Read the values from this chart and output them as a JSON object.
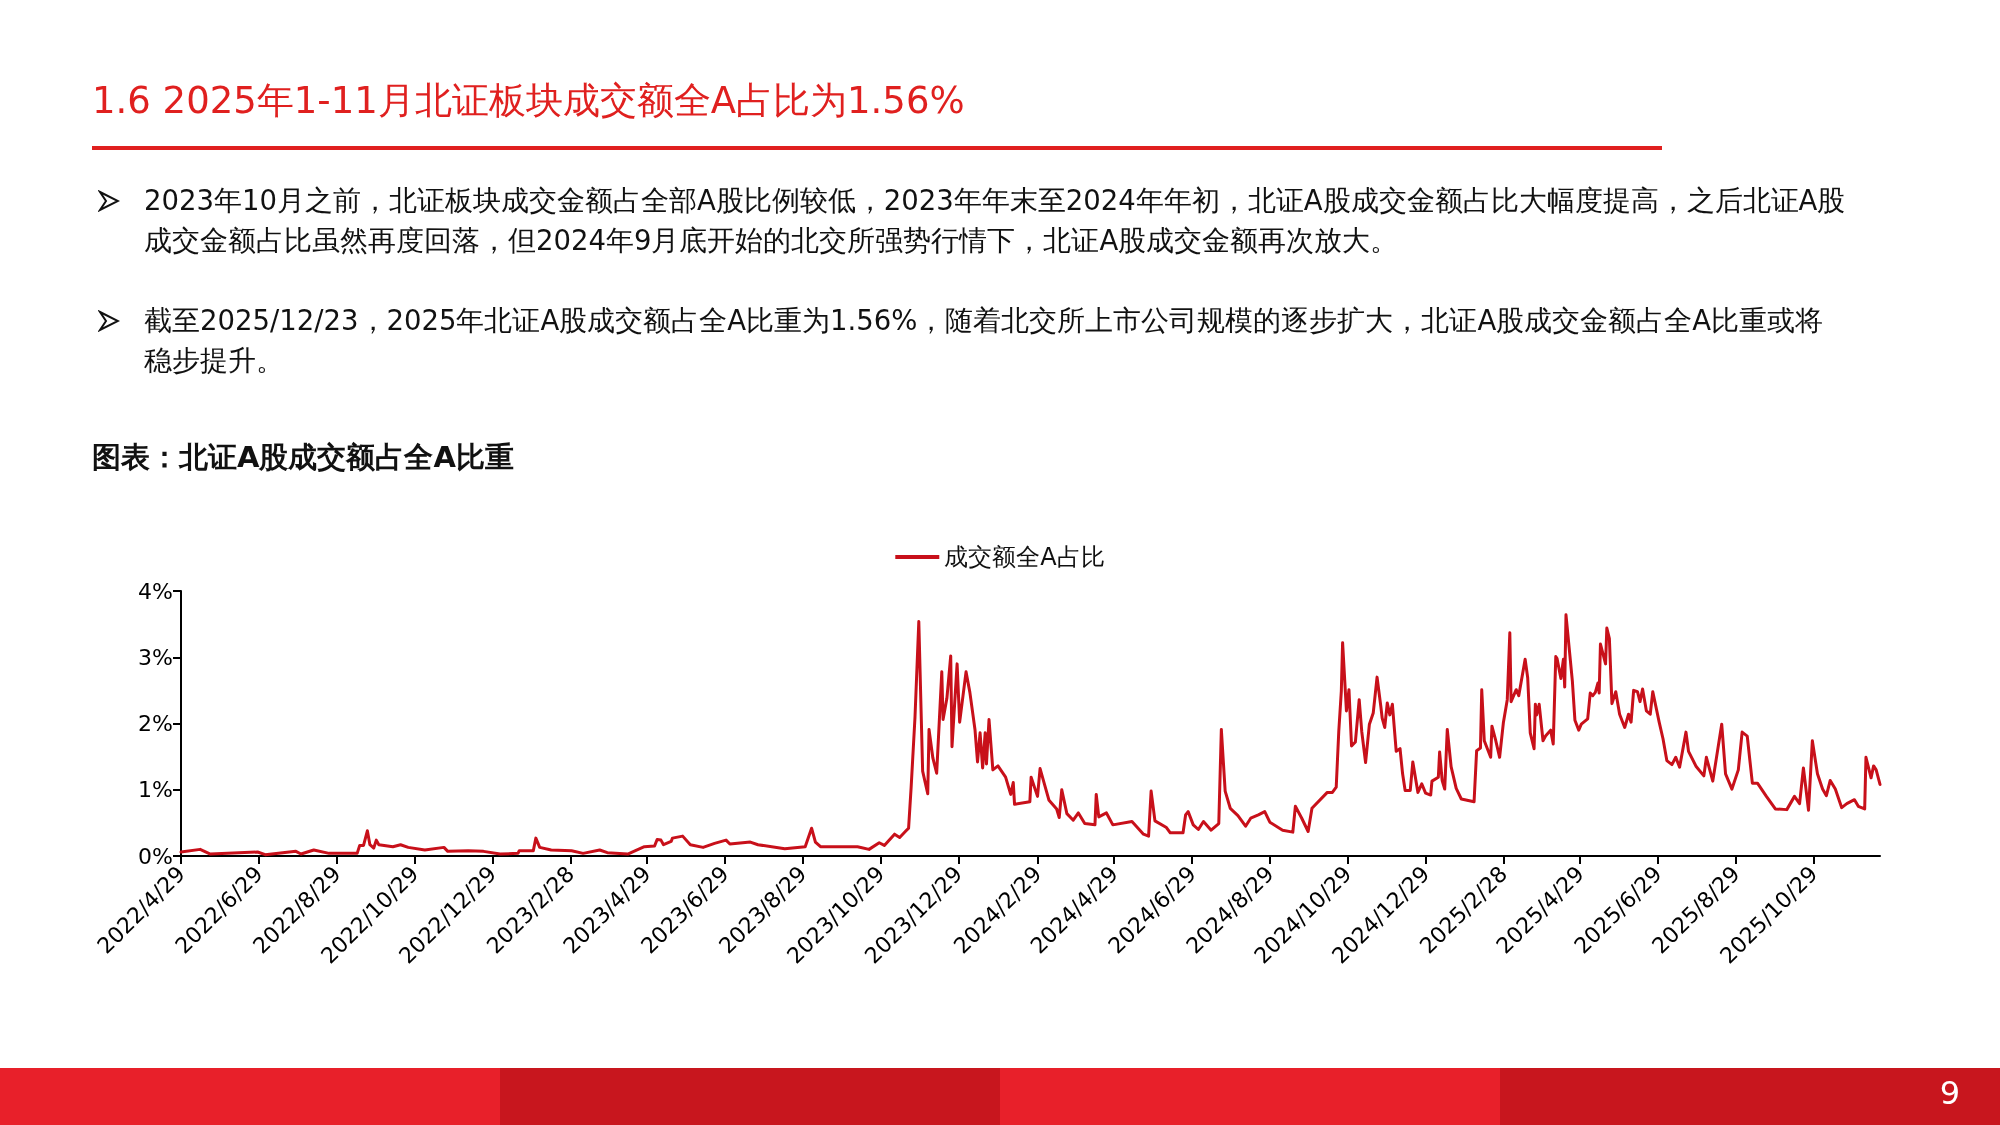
{
  "chart_data": {
    "type": "line",
    "title": "1.6 2025年1-11月北证板块成交额全A占比为1.56%",
    "subtitle": "图表：北证A股成交额占全A比重",
    "annotations": [
      "2023年10月之前，北证板块成交金额占全部A股比例较低，2023年年末至2024年年初，北证A股成交金额占比大幅度提高，之后北证A股成交金额占比虽然再度回落，但2024年9月底开始的北交所强势行情下，北证A股成交金额再次放大。",
      "截至2025/12/23，2025年北证A股成交额占全A比重为1.56%，随着北交所上市公司规模的逐步扩大，北证A股成交金额占全A比重或将稳步提升。",
      "9"
    ],
    "legend": "top",
    "line_style": "solid",
    "marker": "none",
    "ylim": [
      0,
      4
    ],
    "yticks": [
      {
        "value": 0,
        "label": "0%"
      },
      {
        "value": 1,
        "label": "1%"
      },
      {
        "value": 2,
        "label": "2%"
      },
      {
        "value": 3,
        "label": "3%"
      },
      {
        "value": 4,
        "label": "4%"
      }
    ],
    "xlim": [
      "2022-04-29",
      "2025-12-20"
    ],
    "xticks": [
      {
        "value": "2022-04-29",
        "label": "2022/4/29"
      },
      {
        "value": "2022-06-29",
        "label": "2022/6/29"
      },
      {
        "value": "2022-08-29",
        "label": "2022/8/29"
      },
      {
        "value": "2022-10-29",
        "label": "2022/10/29"
      },
      {
        "value": "2022-12-29",
        "label": "2022/12/29"
      },
      {
        "value": "2023-02-28",
        "label": "2023/2/28"
      },
      {
        "value": "2023-04-29",
        "label": "2023/4/29"
      },
      {
        "value": "2023-06-29",
        "label": "2023/6/29"
      },
      {
        "value": "2023-08-29",
        "label": "2023/8/29"
      },
      {
        "value": "2023-10-29",
        "label": "2023/10/29"
      },
      {
        "value": "2023-12-29",
        "label": "2023/12/29"
      },
      {
        "value": "2024-02-29",
        "label": "2024/2/29"
      },
      {
        "value": "2024-04-29",
        "label": "2024/4/29"
      },
      {
        "value": "2024-06-29",
        "label": "2024/6/29"
      },
      {
        "value": "2024-08-29",
        "label": "2024/8/29"
      },
      {
        "value": "2024-10-29",
        "label": "2024/10/29"
      },
      {
        "value": "2024-12-29",
        "label": "2024/12/29"
      },
      {
        "value": "2025-02-28",
        "label": "2025/2/28"
      },
      {
        "value": "2025-04-29",
        "label": "2025/4/29"
      },
      {
        "value": "2025-06-29",
        "label": "2025/6/29"
      },
      {
        "value": "2025-08-29",
        "label": "2025/8/29"
      },
      {
        "value": "2025-10-29",
        "label": "2025/10/29"
      }
    ],
    "series": [
      {
        "name": "成交额全A占比",
        "color": "#c8101a",
        "x": [
          "2022-04-29",
          "2022-05-14",
          "2022-05-22",
          "2022-06-28",
          "2022-07-04",
          "2022-07-28",
          "2022-08-01",
          "2022-08-11",
          "2022-08-23",
          "2022-09-14",
          "2022-09-16",
          "2022-09-19",
          "2022-09-22",
          "2022-09-24",
          "2022-09-27",
          "2022-09-29",
          "2022-10-01",
          "2022-10-12",
          "2022-10-18",
          "2022-10-24",
          "2022-11-06",
          "2022-11-21",
          "2022-11-24",
          "2022-12-10",
          "2022-12-22",
          "2023-01-04",
          "2023-01-18",
          "2023-01-19",
          "2023-01-30",
          "2023-02-01",
          "2023-02-04",
          "2023-02-13",
          "2023-03-01",
          "2023-03-10",
          "2023-03-23",
          "2023-03-29",
          "2023-04-14",
          "2023-04-20",
          "2023-04-27",
          "2023-05-05",
          "2023-05-07",
          "2023-05-10",
          "2023-05-12",
          "2023-05-18",
          "2023-05-19",
          "2023-05-27",
          "2023-06-02",
          "2023-06-12",
          "2023-06-21",
          "2023-06-30",
          "2023-07-03",
          "2023-07-19",
          "2023-07-25",
          "2023-08-15",
          "2023-08-31",
          "2023-09-05",
          "2023-09-08",
          "2023-09-12",
          "2023-10-11",
          "2023-10-20",
          "2023-10-28",
          "2023-11-01",
          "2023-11-09",
          "2023-11-13",
          "2023-11-18",
          "2023-11-20",
          "2023-11-22",
          "2023-11-25",
          "2023-11-28",
          "2023-12-01",
          "2023-12-05",
          "2023-12-06",
          "2023-12-09",
          "2023-12-12",
          "2023-12-16",
          "2023-12-17",
          "2023-12-20",
          "2023-12-23",
          "2023-12-24",
          "2023-12-28",
          "2023-12-30",
          "2024-01-04",
          "2024-01-07",
          "2024-01-11",
          "2024-01-13",
          "2024-01-15",
          "2024-01-17",
          "2024-01-19",
          "2024-01-20",
          "2024-01-22",
          "2024-01-25",
          "2024-01-29",
          "2024-02-04",
          "2024-02-08",
          "2024-02-10",
          "2024-02-11",
          "2024-02-23",
          "2024-02-24",
          "2024-02-29",
          "2024-03-02",
          "2024-03-09",
          "2024-03-15",
          "2024-03-17",
          "2024-03-19",
          "2024-03-23",
          "2024-03-28",
          "2024-04-01",
          "2024-04-06",
          "2024-04-14",
          "2024-04-15",
          "2024-04-17",
          "2024-04-23",
          "2024-04-28",
          "2024-05-13",
          "2024-05-22",
          "2024-05-26",
          "2024-05-28",
          "2024-05-31",
          "2024-06-09",
          "2024-06-12",
          "2024-06-22",
          "2024-06-24",
          "2024-06-26",
          "2024-06-30",
          "2024-07-04",
          "2024-07-08",
          "2024-07-14",
          "2024-07-20",
          "2024-07-22",
          "2024-07-25",
          "2024-07-29",
          "2024-08-04",
          "2024-08-10",
          "2024-08-14",
          "2024-08-20",
          "2024-08-25",
          "2024-08-29",
          "2024-09-08",
          "2024-09-16",
          "2024-09-18",
          "2024-09-23",
          "2024-09-28",
          "2024-10-01",
          "2024-10-13",
          "2024-10-17",
          "2024-10-20",
          "2024-10-22",
          "2024-10-24",
          "2024-10-25",
          "2024-10-28",
          "2024-10-30",
          "2024-11-01",
          "2024-11-04",
          "2024-11-07",
          "2024-11-09",
          "2024-11-12",
          "2024-11-15",
          "2024-11-18",
          "2024-11-21",
          "2024-11-24",
          "2024-11-25",
          "2024-11-27",
          "2024-11-29",
          "2024-12-01",
          "2024-12-03",
          "2024-12-06",
          "2024-12-09",
          "2024-12-11",
          "2024-12-13",
          "2024-12-17",
          "2024-12-19",
          "2024-12-23",
          "2024-12-26",
          "2024-12-29",
          "2025-01-02",
          "2025-01-03",
          "2025-01-08",
          "2025-01-09",
          "2025-01-11",
          "2025-01-13",
          "2025-01-15",
          "2025-01-18",
          "2025-01-22",
          "2025-01-26",
          "2025-02-05",
          "2025-02-07",
          "2025-02-10",
          "2025-02-11",
          "2025-02-13",
          "2025-02-18",
          "2025-02-19",
          "2025-02-22",
          "2025-02-25",
          "2025-02-28",
          "2025-03-03",
          "2025-03-05",
          "2025-03-06",
          "2025-03-10",
          "2025-03-12",
          "2025-03-17",
          "2025-03-19",
          "2025-03-21",
          "2025-03-24",
          "2025-03-25",
          "2025-03-26",
          "2025-03-28",
          "2025-03-31",
          "2025-04-02",
          "2025-04-06",
          "2025-04-08",
          "2025-04-10",
          "2025-04-11",
          "2025-04-14",
          "2025-04-16",
          "2025-04-17",
          "2025-04-18",
          "2025-04-23",
          "2025-04-25",
          "2025-04-28",
          "2025-04-30",
          "2025-05-05",
          "2025-05-07",
          "2025-05-09",
          "2025-05-11",
          "2025-05-13",
          "2025-05-14",
          "2025-05-15",
          "2025-05-19",
          "2025-05-20",
          "2025-05-22",
          "2025-05-24",
          "2025-05-27",
          "2025-05-30",
          "2025-06-03",
          "2025-06-06",
          "2025-06-08",
          "2025-06-10",
          "2025-06-13",
          "2025-06-15",
          "2025-06-17",
          "2025-06-20",
          "2025-06-23",
          "2025-06-25",
          "2025-06-30",
          "2025-07-03",
          "2025-07-06",
          "2025-07-10",
          "2025-07-13",
          "2025-07-16",
          "2025-07-21",
          "2025-07-23",
          "2025-07-29",
          "2025-08-04",
          "2025-08-06",
          "2025-08-11",
          "2025-08-18",
          "2025-08-21",
          "2025-08-26",
          "2025-08-31",
          "2025-09-03",
          "2025-09-07",
          "2025-09-11",
          "2025-09-15",
          "2025-09-22",
          "2025-09-29",
          "2025-10-08",
          "2025-10-14",
          "2025-10-18",
          "2025-10-21",
          "2025-10-25",
          "2025-10-28",
          "2025-11-01",
          "2025-11-05",
          "2025-11-08",
          "2025-11-11",
          "2025-11-15",
          "2025-11-20",
          "2025-11-24",
          "2025-11-30",
          "2025-12-03",
          "2025-12-08",
          "2025-12-09",
          "2025-12-13",
          "2025-12-15",
          "2025-12-17",
          "2025-12-20"
        ],
        "values": [
          0.06,
          0.1,
          0.03,
          0.06,
          0.02,
          0.07,
          0.03,
          0.09,
          0.04,
          0.04,
          0.16,
          0.16,
          0.38,
          0.17,
          0.12,
          0.24,
          0.17,
          0.14,
          0.17,
          0.13,
          0.09,
          0.13,
          0.07,
          0.08,
          0.07,
          0.03,
          0.04,
          0.08,
          0.08,
          0.27,
          0.13,
          0.09,
          0.08,
          0.04,
          0.09,
          0.05,
          0.03,
          0.08,
          0.14,
          0.15,
          0.25,
          0.24,
          0.17,
          0.22,
          0.27,
          0.3,
          0.17,
          0.13,
          0.19,
          0.24,
          0.18,
          0.21,
          0.17,
          0.11,
          0.14,
          0.42,
          0.21,
          0.14,
          0.14,
          0.1,
          0.2,
          0.16,
          0.33,
          0.28,
          0.38,
          0.42,
          1.04,
          2.09,
          3.54,
          1.28,
          0.94,
          1.91,
          1.48,
          1.25,
          2.78,
          2.06,
          2.38,
          3.02,
          1.65,
          2.9,
          2.02,
          2.78,
          2.47,
          1.91,
          1.42,
          1.86,
          1.33,
          1.86,
          1.39,
          2.06,
          1.3,
          1.36,
          1.19,
          0.93,
          1.11,
          0.78,
          0.82,
          1.19,
          0.9,
          1.32,
          0.84,
          0.71,
          0.58,
          1.0,
          0.64,
          0.54,
          0.65,
          0.49,
          0.47,
          0.93,
          0.59,
          0.65,
          0.47,
          0.52,
          0.33,
          0.3,
          0.98,
          0.53,
          0.43,
          0.35,
          0.35,
          0.62,
          0.67,
          0.47,
          0.4,
          0.52,
          0.39,
          0.49,
          1.91,
          0.98,
          0.72,
          0.61,
          0.45,
          0.57,
          0.62,
          0.67,
          0.51,
          0.39,
          0.36,
          0.75,
          0.57,
          0.37,
          0.72,
          0.96,
          0.96,
          1.04,
          1.88,
          2.49,
          3.22,
          2.19,
          2.51,
          1.66,
          1.72,
          2.36,
          1.88,
          1.41,
          1.99,
          2.16,
          2.7,
          2.25,
          2.08,
          1.94,
          2.31,
          2.13,
          2.29,
          1.58,
          1.62,
          1.24,
          0.99,
          0.99,
          1.42,
          0.96,
          1.09,
          0.95,
          0.92,
          1.13,
          1.19,
          1.57,
          1.14,
          1.01,
          1.91,
          1.35,
          1.02,
          0.86,
          0.82,
          1.59,
          1.63,
          2.51,
          1.74,
          1.49,
          1.96,
          1.74,
          1.49,
          2.02,
          2.36,
          3.37,
          2.33,
          2.51,
          2.42,
          2.97,
          2.69,
          1.86,
          1.62,
          2.29,
          2.13,
          2.29,
          1.74,
          1.81,
          1.9,
          1.69,
          3.01,
          2.98,
          2.68,
          2.97,
          2.55,
          3.64,
          2.64,
          2.05,
          1.9,
          1.99,
          2.07,
          2.46,
          2.42,
          2.47,
          2.61,
          2.46,
          3.2,
          2.9,
          3.44,
          3.28,
          2.3,
          2.48,
          2.14,
          1.94,
          2.14,
          2.02,
          2.5,
          2.48,
          2.33,
          2.52,
          2.19,
          2.14,
          2.48,
          2.02,
          1.77,
          1.44,
          1.38,
          1.49,
          1.34,
          1.87,
          1.58,
          1.35,
          1.21,
          1.49,
          1.13,
          1.99,
          1.24,
          1.01,
          1.3,
          1.87,
          1.81,
          1.1,
          1.1,
          0.9,
          0.71,
          0.7,
          0.9,
          0.79,
          1.33,
          0.69,
          1.74,
          1.24,
          1.01,
          0.91,
          1.14,
          1.01,
          0.73,
          0.79,
          0.85,
          0.75,
          0.71,
          1.49,
          1.18,
          1.36,
          1.3,
          1.08
        ]
      }
    ]
  }
}
